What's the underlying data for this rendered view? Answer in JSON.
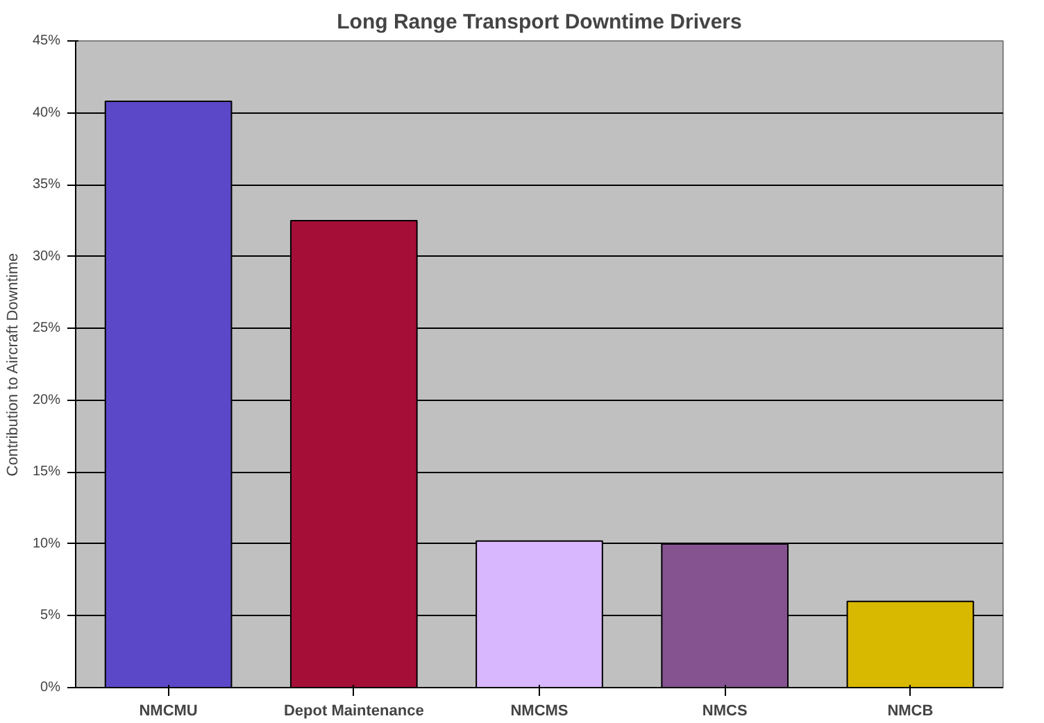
{
  "chart_data": {
    "type": "bar",
    "title": "Long Range Transport Downtime Drivers",
    "ylabel": "Contribution to Aircraft Downtime",
    "categories": [
      "NMCMU",
      "Depot Maintenance",
      "NMCMS",
      "NMCS",
      "NMCB"
    ],
    "values": [
      40.8,
      32.5,
      10.2,
      10.0,
      6.0
    ],
    "colors": [
      "#5b48c8",
      "#a50f37",
      "#d9b7ff",
      "#845390",
      "#d9b800"
    ],
    "ylim": [
      0,
      45
    ],
    "yticks": [
      {
        "value": 0,
        "label": "0%"
      },
      {
        "value": 5,
        "label": "5%"
      },
      {
        "value": 10,
        "label": "10%"
      },
      {
        "value": 15,
        "label": "15%"
      },
      {
        "value": 20,
        "label": "20%"
      },
      {
        "value": 25,
        "label": "25%"
      },
      {
        "value": 30,
        "label": "30%"
      },
      {
        "value": 35,
        "label": "35%"
      },
      {
        "value": 40,
        "label": "40%"
      },
      {
        "value": 45,
        "label": "45%"
      }
    ],
    "grid": "y"
  }
}
